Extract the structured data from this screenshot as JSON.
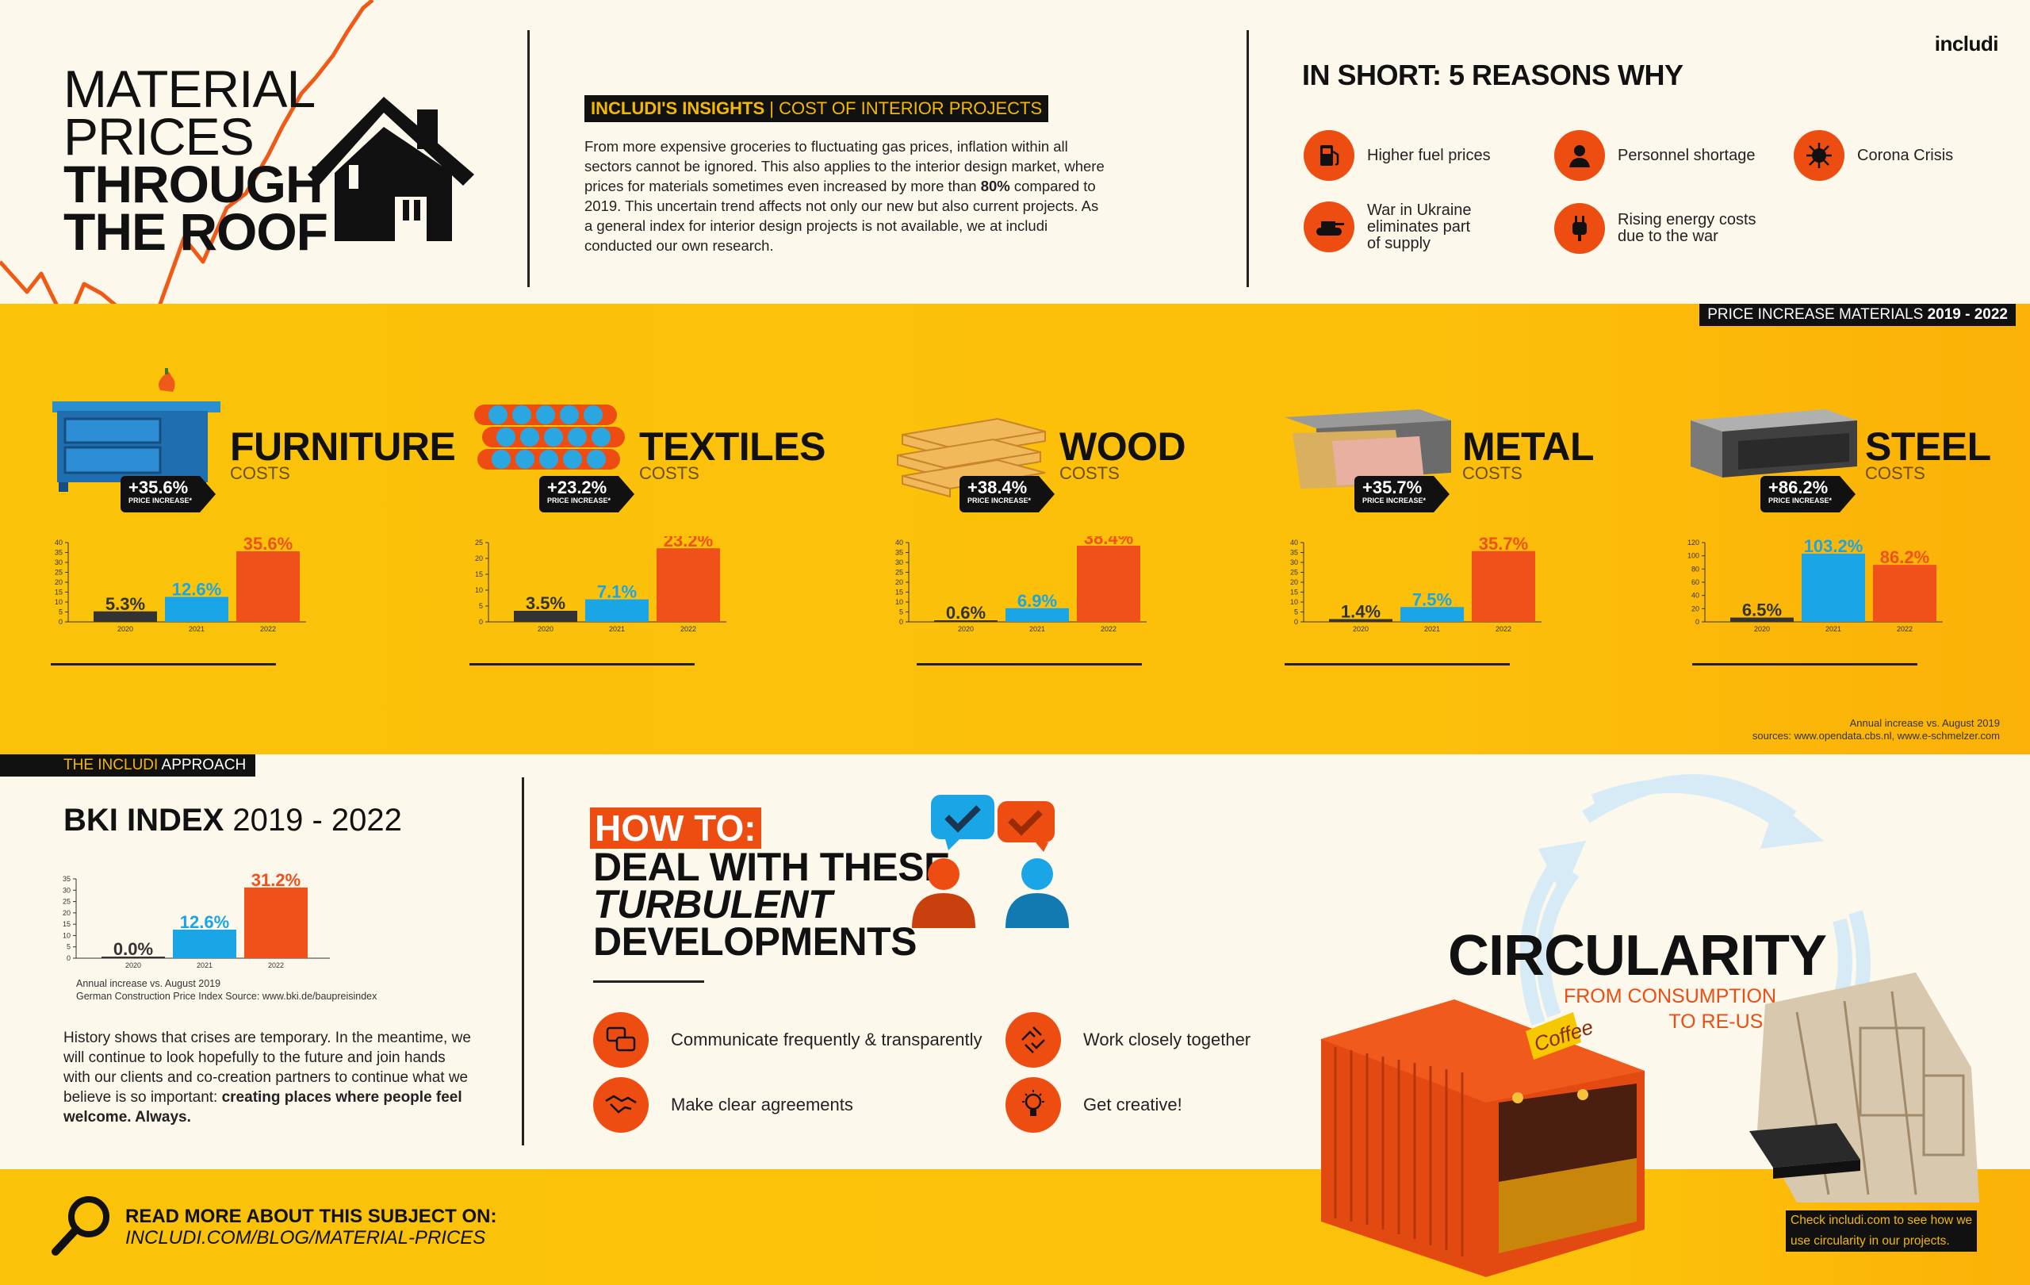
{
  "brand": "includi",
  "title": {
    "line1": "MATERIAL",
    "line2": "PRICES",
    "line3": "THROUGH",
    "line4": "THE ROOF"
  },
  "insights": {
    "tag_bold": "INCLUDI'S INSIGHTS",
    "tag_light": "| COST OF INTERIOR PROJECTS",
    "text_before": "From more expensive groceries to fluctuating gas prices, inflation within all sectors cannot be ignored. This also applies to the interior design market, where prices for materials sometimes even increased by more than ",
    "text_bold": "80%",
    "text_after": " compared to 2019. This uncertain trend affects not only our new but also current projects. As a general index for interior design projects is not available, we at includi conducted our own research."
  },
  "reasons": {
    "title": "IN SHORT: 5 REASONS WHY",
    "items": [
      {
        "label": "Higher fuel prices",
        "icon": "fuel-pump-icon"
      },
      {
        "label": "Personnel shortage",
        "icon": "worker-icon"
      },
      {
        "label": "Corona Crisis",
        "icon": "virus-icon"
      },
      {
        "label": "War in Ukraine eliminates part of supply",
        "line1": "War in Ukraine",
        "line2": "eliminates part",
        "line3": "of supply",
        "icon": "tank-icon"
      },
      {
        "label": "Rising energy costs due to the war",
        "line1": "Rising energy costs",
        "line2": "due to the war",
        "icon": "energy-plug-icon"
      }
    ]
  },
  "band_label": {
    "light": "PRICE INCREASE MATERIALS ",
    "bold": "2019 - 2022"
  },
  "materials": [
    {
      "name": "FURNITURE",
      "sub": "COSTS",
      "badge": "+35.6%",
      "badge_sub": "PRICE INCREASE*"
    },
    {
      "name": "TEXTILES",
      "sub": "COSTS",
      "badge": "+23.2%",
      "badge_sub": "PRICE INCREASE*"
    },
    {
      "name": "WOOD",
      "sub": "COSTS",
      "badge": "+38.4%",
      "badge_sub": "PRICE INCREASE*"
    },
    {
      "name": "METAL",
      "sub": "COSTS",
      "badge": "+35.7%",
      "badge_sub": "PRICE INCREASE*"
    },
    {
      "name": "STEEL",
      "sub": "COSTS",
      "badge": "+86.2%",
      "badge_sub": "PRICE INCREASE*"
    }
  ],
  "sources": {
    "line1": "Annual increase vs. August 2019",
    "line2": "sources: www.opendata.cbs.nl, www.e-schmelzer.com"
  },
  "chart_data": [
    {
      "type": "bar",
      "title": "FURNITURE",
      "categories": [
        "2020",
        "2021",
        "2022"
      ],
      "values": [
        5.3,
        12.6,
        35.6
      ],
      "labels": [
        "5.3%",
        "12.6%",
        "35.6%"
      ],
      "yticks": [
        0,
        5,
        10,
        15,
        20,
        25,
        30,
        35,
        40
      ],
      "ylim": [
        0,
        40
      ],
      "colors": [
        "#333333",
        "#1aa5e6",
        "#f0501a"
      ]
    },
    {
      "type": "bar",
      "title": "TEXTILES",
      "categories": [
        "2020",
        "2021",
        "2022"
      ],
      "values": [
        3.5,
        7.1,
        23.2
      ],
      "labels": [
        "3.5%",
        "7.1%",
        "23.2%"
      ],
      "yticks": [
        0,
        5,
        10,
        15,
        20,
        25
      ],
      "ylim": [
        0,
        25
      ],
      "colors": [
        "#333333",
        "#1aa5e6",
        "#f0501a"
      ]
    },
    {
      "type": "bar",
      "title": "WOOD",
      "categories": [
        "2020",
        "2021",
        "2022"
      ],
      "values": [
        0.6,
        6.9,
        38.4
      ],
      "labels": [
        "0.6%",
        "6.9%",
        "38.4%"
      ],
      "yticks": [
        0,
        5,
        10,
        15,
        20,
        25,
        30,
        35,
        40
      ],
      "ylim": [
        0,
        40
      ],
      "colors": [
        "#333333",
        "#1aa5e6",
        "#f0501a"
      ]
    },
    {
      "type": "bar",
      "title": "METAL",
      "categories": [
        "2020",
        "2021",
        "2022"
      ],
      "values": [
        1.4,
        7.5,
        35.7
      ],
      "labels": [
        "1.4%",
        "7.5%",
        "35.7%"
      ],
      "yticks": [
        0,
        5,
        10,
        15,
        20,
        25,
        30,
        35,
        40
      ],
      "ylim": [
        0,
        40
      ],
      "colors": [
        "#333333",
        "#1aa5e6",
        "#f0501a"
      ]
    },
    {
      "type": "bar",
      "title": "STEEL",
      "categories": [
        "2020",
        "2021",
        "2022"
      ],
      "values": [
        6.5,
        103.2,
        86.2
      ],
      "labels": [
        "6.5%",
        "103.2%",
        "86.2%"
      ],
      "yticks": [
        0,
        20,
        40,
        60,
        80,
        100,
        120
      ],
      "ylim": [
        0,
        120
      ],
      "colors": [
        "#333333",
        "#1aa5e6",
        "#f0501a"
      ]
    },
    {
      "type": "bar",
      "title": "BKI INDEX 2019 - 2022",
      "categories": [
        "2020",
        "2021",
        "2022"
      ],
      "values": [
        0.0,
        12.6,
        31.2
      ],
      "labels": [
        "0.0%",
        "12.6%",
        "31.2%"
      ],
      "yticks": [
        0,
        5,
        10,
        15,
        20,
        25,
        30,
        35
      ],
      "ylim": [
        0,
        35
      ],
      "colors": [
        "#333333",
        "#1aa5e6",
        "#f0501a"
      ]
    }
  ],
  "approach": {
    "label_light": "THE INCLUDI ",
    "label_bold": "APPROACH"
  },
  "bki": {
    "title_bold": "BKI INDEX",
    "title_light": " 2019 - 2022",
    "note1": "Annual increase vs. August 2019",
    "note2": "German Construction Price Index  Source: www.bki.de/baupreisindex",
    "text_before": "History shows that crises are temporary. In the meantime, we will continue to look hopefully to the future and join hands with our clients and co-creation partners to continue what we believe is so important: ",
    "text_bold": "creating places where people feel welcome. Always."
  },
  "howto": {
    "tag": "HOW TO:",
    "line1": "DEAL WITH THESE",
    "line2": "TURBULENT",
    "line3": "DEVELOPMENTS",
    "tips": [
      {
        "label": "Communicate frequently & transparently",
        "icon": "chat-bubbles-icon"
      },
      {
        "label": "Work closely together",
        "icon": "hands-together-icon"
      },
      {
        "label": "Make clear agreements",
        "icon": "handshake-icon"
      },
      {
        "label": "Get creative!",
        "icon": "lightbulb-icon"
      }
    ]
  },
  "circularity": {
    "title": "CIRCULARITY",
    "sub1": "FROM CONSUMPTION",
    "sub2": "TO RE-USE",
    "coffee_sign": "Coffee",
    "check1": "Check includi.com to see how we",
    "check2": "use circularity in our projects."
  },
  "read_more": {
    "label": "READ MORE ABOUT THIS SUBJECT ON:",
    "link": "INCLUDI.COM/BLOG/MATERIAL-PRICES"
  },
  "colors": {
    "yellow": "#fbc20a",
    "orange": "#ee4d12",
    "blue": "#1aa5e6",
    "dark": "#111111",
    "cream": "#fdf8ec"
  }
}
